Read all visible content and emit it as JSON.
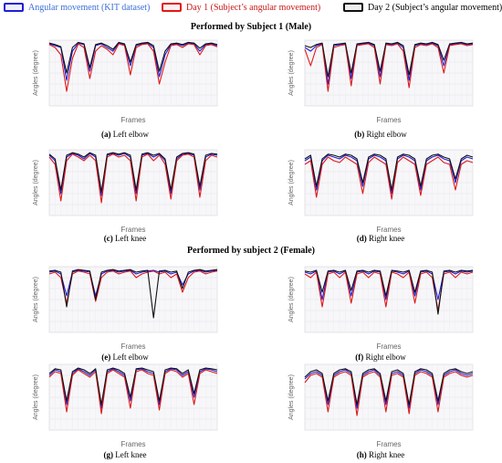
{
  "legend": [
    {
      "label": "Angular movement (KIT dataset)",
      "color": "#1f1fd6",
      "fill": "#f0f0ff",
      "text_color": "#3a6fd8"
    },
    {
      "label": "Day 1 (Subject’s angular movement)",
      "color": "#e01818",
      "fill": "#fff0f0",
      "text_color": "#c81818"
    },
    {
      "label": "Day 2 (Subject’s angular movement)",
      "color": "#111111",
      "fill": "#eeeeee",
      "text_color": "#000000"
    }
  ],
  "sections": [
    {
      "title": "Performed by Subject 1 (Male)"
    },
    {
      "title": "Performed by subject 2 (Female)"
    }
  ],
  "chart_data": [
    {
      "type": "line",
      "id": "a",
      "caption_letter": "(a)",
      "caption_text": "Left elbow",
      "xlabel": "Frames",
      "ylabel": "Angles (degree)",
      "series": [
        {
          "values": [
            170,
            165,
            160,
            70,
            150,
            172,
            168,
            95,
            165,
            170,
            160,
            150,
            172,
            168,
            110,
            165,
            170,
            172,
            160,
            80,
            140,
            168,
            170,
            165,
            172,
            170,
            150,
            168,
            170,
            165
          ]
        },
        {
          "values": [
            168,
            160,
            140,
            40,
            130,
            170,
            160,
            75,
            150,
            165,
            155,
            140,
            170,
            165,
            85,
            160,
            168,
            170,
            150,
            60,
            120,
            165,
            168,
            160,
            170,
            168,
            140,
            165,
            168,
            162
          ]
        },
        {
          "values": [
            172,
            168,
            162,
            90,
            160,
            174,
            170,
            105,
            168,
            172,
            165,
            155,
            174,
            170,
            120,
            168,
            172,
            174,
            165,
            95,
            150,
            170,
            172,
            168,
            174,
            172,
            158,
            170,
            172,
            168
          ]
        }
      ]
    },
    {
      "type": "line",
      "id": "b",
      "caption_letter": "(b)",
      "caption_text": "Right elbow",
      "xlabel": "Frames",
      "ylabel": "Angles (degree)",
      "series": [
        {
          "values": [
            160,
            150,
            165,
            170,
            60,
            165,
            168,
            170,
            75,
            168,
            170,
            172,
            165,
            80,
            170,
            168,
            172,
            160,
            70,
            165,
            170,
            168,
            172,
            165,
            110,
            168,
            170,
            172,
            168,
            170
          ]
        },
        {
          "values": [
            155,
            110,
            160,
            168,
            40,
            160,
            165,
            168,
            55,
            165,
            168,
            170,
            160,
            60,
            168,
            165,
            170,
            150,
            50,
            160,
            168,
            165,
            170,
            160,
            90,
            165,
            168,
            170,
            165,
            168
          ]
        },
        {
          "values": [
            165,
            160,
            168,
            172,
            80,
            168,
            170,
            172,
            90,
            170,
            172,
            174,
            168,
            95,
            172,
            170,
            174,
            165,
            85,
            168,
            172,
            170,
            174,
            168,
            125,
            170,
            172,
            174,
            170,
            172
          ]
        }
      ]
    },
    {
      "type": "line",
      "id": "c",
      "caption_letter": "(c)",
      "caption_text": "Left knee",
      "xlabel": "Frames",
      "ylabel": "Angles (degree)",
      "series": [
        {
          "values": [
            165,
            150,
            60,
            160,
            170,
            165,
            155,
            170,
            160,
            55,
            165,
            170,
            165,
            170,
            160,
            60,
            165,
            170,
            160,
            168,
            150,
            60,
            155,
            168,
            170,
            165,
            70,
            160,
            168,
            165
          ]
        },
        {
          "values": [
            160,
            140,
            40,
            150,
            168,
            160,
            150,
            165,
            150,
            35,
            160,
            168,
            160,
            165,
            150,
            40,
            160,
            168,
            150,
            165,
            140,
            45,
            150,
            165,
            168,
            160,
            50,
            150,
            165,
            160
          ]
        },
        {
          "values": [
            168,
            155,
            70,
            165,
            172,
            168,
            160,
            172,
            165,
            65,
            168,
            172,
            168,
            172,
            165,
            70,
            168,
            172,
            165,
            170,
            155,
            70,
            160,
            170,
            172,
            168,
            80,
            165,
            170,
            168
          ]
        }
      ]
    },
    {
      "type": "line",
      "id": "d",
      "caption_letter": "(d)",
      "caption_text": "Right knee",
      "xlabel": "Frames",
      "ylabel": "Angles (degree)",
      "series": [
        {
          "values": [
            150,
            160,
            70,
            150,
            165,
            160,
            155,
            165,
            160,
            150,
            80,
            155,
            165,
            160,
            150,
            60,
            155,
            165,
            160,
            150,
            70,
            150,
            160,
            165,
            155,
            150,
            90,
            150,
            160,
            155
          ]
        },
        {
          "values": [
            140,
            150,
            50,
            140,
            160,
            150,
            145,
            160,
            150,
            140,
            60,
            145,
            160,
            150,
            140,
            45,
            145,
            160,
            150,
            140,
            55,
            140,
            150,
            160,
            145,
            140,
            70,
            140,
            150,
            145
          ]
        },
        {
          "values": [
            155,
            165,
            80,
            155,
            168,
            165,
            160,
            168,
            165,
            155,
            90,
            160,
            168,
            165,
            155,
            70,
            160,
            168,
            165,
            155,
            80,
            155,
            165,
            168,
            160,
            155,
            100,
            155,
            165,
            160
          ]
        }
      ]
    },
    {
      "type": "line",
      "id": "e",
      "caption_letter": "(e)",
      "caption_text": "Left elbow",
      "xlabel": "Frames",
      "ylabel": "Angles (degree)",
      "series": [
        {
          "values": [
            165,
            168,
            160,
            100,
            165,
            170,
            168,
            165,
            100,
            160,
            168,
            170,
            165,
            168,
            170,
            160,
            165,
            168,
            170,
            165,
            168,
            160,
            165,
            130,
            160,
            168,
            170,
            165,
            168,
            170
          ]
        },
        {
          "values": [
            160,
            165,
            150,
            80,
            160,
            168,
            165,
            160,
            85,
            150,
            165,
            168,
            160,
            165,
            168,
            150,
            160,
            165,
            168,
            160,
            165,
            150,
            160,
            110,
            150,
            165,
            168,
            160,
            165,
            168
          ]
        },
        {
          "values": [
            168,
            170,
            165,
            70,
            168,
            172,
            170,
            168,
            90,
            165,
            170,
            172,
            168,
            170,
            172,
            165,
            168,
            170,
            40,
            168,
            170,
            165,
            168,
            120,
            165,
            170,
            172,
            168,
            170,
            172
          ]
        }
      ]
    },
    {
      "type": "line",
      "id": "f",
      "caption_letter": "(f)",
      "caption_text": "Right elbow",
      "xlabel": "Frames",
      "ylabel": "Angles (degree)",
      "series": [
        {
          "values": [
            165,
            160,
            168,
            90,
            165,
            168,
            160,
            168,
            100,
            165,
            168,
            160,
            168,
            165,
            90,
            168,
            165,
            160,
            168,
            100,
            165,
            168,
            160,
            90,
            165,
            168,
            160,
            168,
            165,
            168
          ]
        },
        {
          "values": [
            160,
            150,
            165,
            70,
            160,
            165,
            150,
            165,
            80,
            160,
            165,
            150,
            165,
            160,
            70,
            165,
            160,
            150,
            165,
            80,
            160,
            165,
            150,
            60,
            160,
            165,
            150,
            165,
            160,
            165
          ]
        },
        {
          "values": [
            168,
            165,
            170,
            110,
            168,
            170,
            165,
            170,
            115,
            168,
            170,
            165,
            170,
            168,
            100,
            170,
            168,
            165,
            170,
            110,
            168,
            170,
            165,
            50,
            168,
            170,
            165,
            170,
            168,
            170
          ]
        }
      ]
    },
    {
      "type": "line",
      "id": "g",
      "caption_letter": "(g)",
      "caption_text": "Left knee",
      "xlabel": "Frames",
      "ylabel": "Angles (degree)",
      "series": [
        {
          "values": [
            150,
            165,
            160,
            70,
            155,
            168,
            160,
            150,
            165,
            60,
            160,
            168,
            160,
            150,
            80,
            165,
            168,
            160,
            155,
            70,
            160,
            168,
            165,
            150,
            160,
            90,
            160,
            168,
            165,
            160
          ]
        },
        {
          "values": [
            145,
            160,
            155,
            50,
            150,
            165,
            155,
            145,
            160,
            45,
            155,
            165,
            155,
            145,
            60,
            160,
            165,
            155,
            150,
            55,
            155,
            165,
            160,
            145,
            155,
            70,
            155,
            165,
            160,
            155
          ]
        },
        {
          "values": [
            155,
            168,
            165,
            80,
            160,
            170,
            165,
            155,
            168,
            70,
            165,
            170,
            165,
            155,
            90,
            168,
            170,
            165,
            160,
            80,
            165,
            170,
            168,
            155,
            165,
            100,
            165,
            170,
            168,
            165
          ]
        }
      ]
    },
    {
      "type": "line",
      "id": "h",
      "caption_letter": "(h)",
      "caption_text": "Right knee",
      "xlabel": "Frames",
      "ylabel": "Angles (degree)",
      "series": [
        {
          "values": [
            140,
            155,
            160,
            150,
            70,
            150,
            160,
            165,
            155,
            60,
            150,
            160,
            165,
            150,
            70,
            155,
            160,
            150,
            60,
            155,
            165,
            160,
            150,
            70,
            150,
            160,
            165,
            155,
            150,
            155
          ]
        },
        {
          "values": [
            130,
            150,
            155,
            145,
            50,
            145,
            155,
            160,
            150,
            40,
            145,
            155,
            160,
            145,
            50,
            150,
            155,
            145,
            45,
            150,
            160,
            155,
            145,
            50,
            145,
            155,
            160,
            150,
            145,
            150
          ]
        },
        {
          "values": [
            145,
            160,
            165,
            155,
            80,
            155,
            165,
            168,
            160,
            70,
            155,
            165,
            168,
            155,
            80,
            160,
            165,
            155,
            70,
            160,
            168,
            165,
            155,
            80,
            155,
            165,
            168,
            160,
            155,
            160
          ]
        }
      ]
    }
  ]
}
